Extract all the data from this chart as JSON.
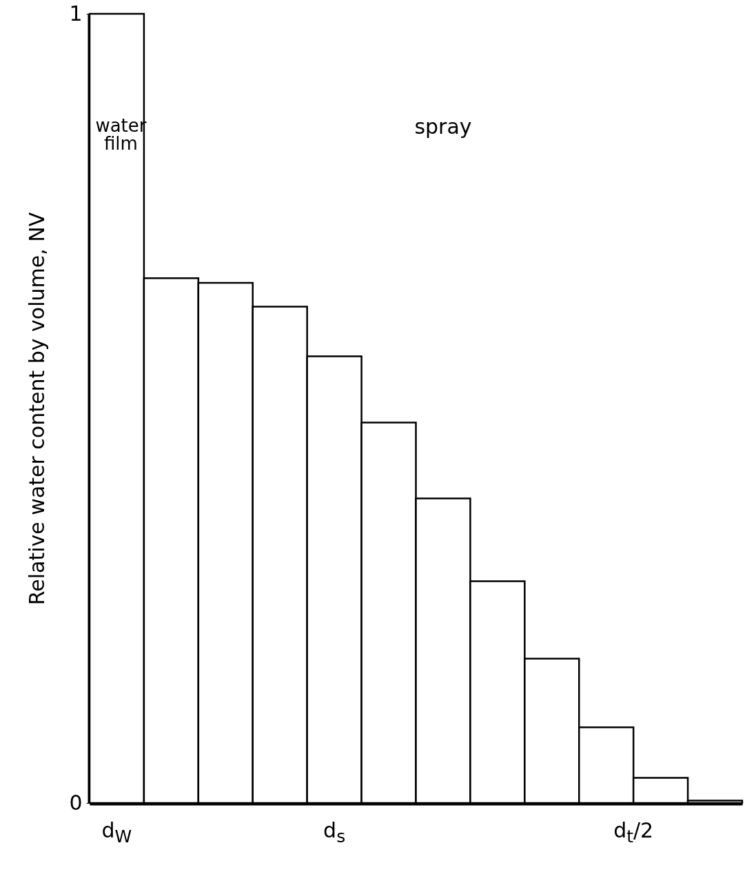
{
  "chart_data": {
    "type": "bar",
    "ylabel": "Relative water content by volume, NV",
    "categories": [
      null,
      null,
      null,
      null,
      null,
      null,
      null,
      null,
      null,
      null,
      null,
      null
    ],
    "values": [
      1,
      0.665,
      0.659,
      0.629,
      0.566,
      0.482,
      0.386,
      0.281,
      0.183,
      0.096,
      0.032,
      0.003
    ],
    "color": "#ffffff",
    "ylim": [
      0,
      1
    ],
    "yticks": [
      0,
      1
    ],
    "tick_labels": "y",
    "grid": false,
    "annotations": [
      "water film",
      "spray",
      "d$_{W}$",
      "d$_{s}$",
      "d$_{t}$/2"
    ]
  }
}
